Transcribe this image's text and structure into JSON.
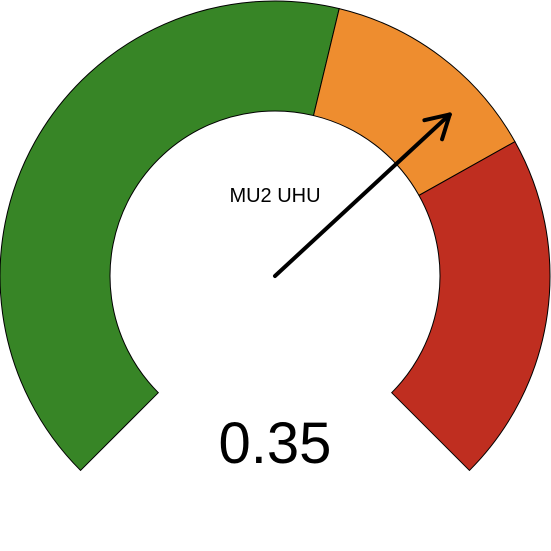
{
  "chart_data": {
    "type": "gauge",
    "label": "MU2 UHU",
    "value": 0.35,
    "value_text": "0.35",
    "range": [
      -1,
      1
    ],
    "bands": [
      {
        "from": -1.0,
        "to": 0.1,
        "color": "#378526"
      },
      {
        "from": 0.1,
        "to": 0.45,
        "color": "#EE8D2F"
      },
      {
        "from": 0.45,
        "to": 1.0,
        "color": "#BF2E20"
      }
    ],
    "needle_color": "#000000"
  }
}
